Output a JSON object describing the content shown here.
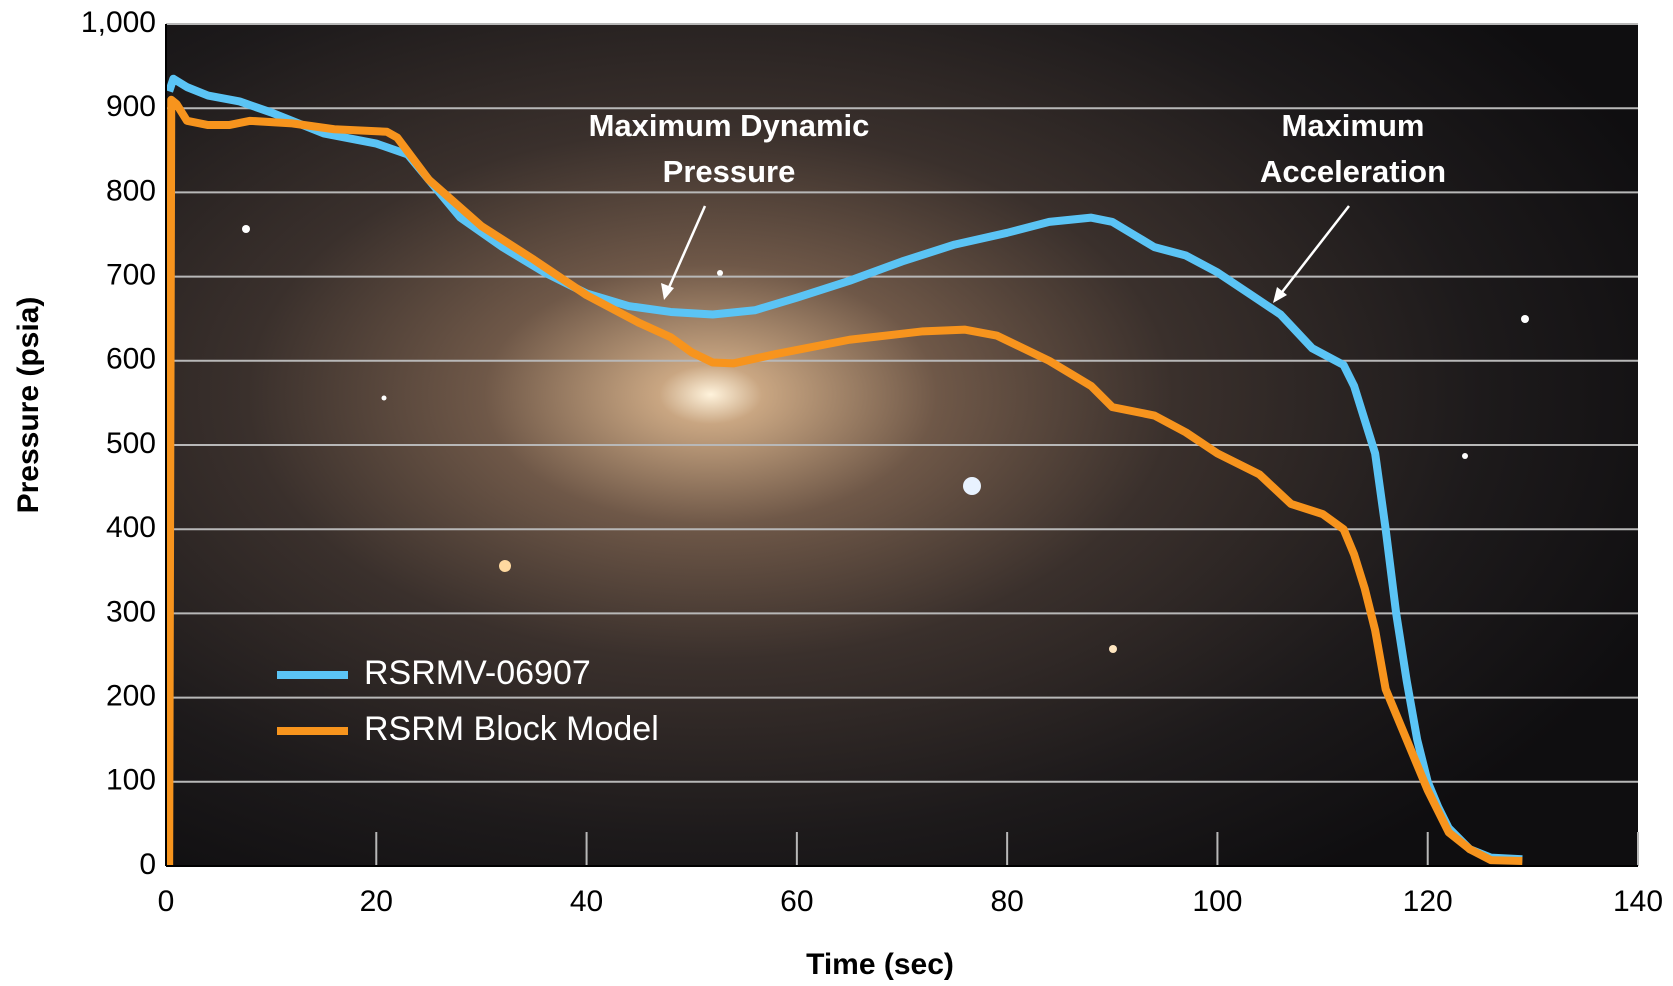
{
  "chart_data": {
    "type": "line",
    "xlabel": "Time (sec)",
    "ylabel": "Pressure (psia)",
    "xlim": [
      0,
      140
    ],
    "xticks": [
      0,
      20,
      40,
      60,
      80,
      100,
      120,
      140
    ],
    "ylim": [
      0,
      1000
    ],
    "yticks": [
      0,
      100,
      200,
      300,
      400,
      500,
      600,
      700,
      800,
      900,
      {
        "value": 1000,
        "label": "1,000"
      }
    ],
    "grid": true,
    "legend": "lower-left",
    "annotations": [
      [
        "Maximum Dynamic",
        "Pressure"
      ],
      [
        "Maximum",
        "Acceleration"
      ]
    ],
    "series": [
      {
        "name": "RSRMV-06907",
        "color": "#5bc4f5",
        "x": [
          0.3,
          0.7,
          2,
          4,
          7,
          10,
          15,
          20,
          23,
          25,
          28,
          32,
          36,
          40,
          44,
          48,
          52,
          56,
          60,
          65,
          70,
          75,
          80,
          84,
          88,
          90,
          92,
          94,
          97,
          100,
          103,
          106,
          109,
          112,
          113,
          114,
          115,
          116,
          117,
          118,
          119,
          120,
          121,
          122,
          124,
          126,
          129
        ],
        "values": [
          920,
          935,
          925,
          915,
          908,
          895,
          870,
          858,
          845,
          815,
          770,
          735,
          705,
          680,
          665,
          658,
          655,
          660,
          675,
          695,
          718,
          738,
          752,
          765,
          770,
          765,
          750,
          735,
          725,
          705,
          680,
          655,
          615,
          595,
          570,
          530,
          490,
          400,
          300,
          220,
          150,
          100,
          70,
          45,
          20,
          10,
          8
        ]
      },
      {
        "name": "RSRM Block Model",
        "color": "#f7941d",
        "x": [
          0.3,
          0.5,
          1,
          2,
          4,
          6,
          8,
          12,
          16,
          21,
          22,
          25,
          30,
          35,
          40,
          45,
          48,
          50,
          52,
          54,
          58,
          65,
          72,
          76,
          79,
          84,
          88,
          90,
          94,
          97,
          100,
          104,
          107,
          110,
          112,
          113,
          114,
          115,
          116,
          118,
          120,
          122,
          124,
          126,
          129
        ],
        "values": [
          0,
          910,
          905,
          885,
          880,
          880,
          885,
          882,
          875,
          872,
          865,
          815,
          760,
          720,
          678,
          645,
          628,
          610,
          598,
          597,
          608,
          625,
          635,
          637,
          630,
          600,
          570,
          545,
          535,
          515,
          490,
          465,
          430,
          418,
          400,
          370,
          330,
          280,
          210,
          150,
          90,
          40,
          20,
          7,
          6
        ]
      }
    ]
  }
}
